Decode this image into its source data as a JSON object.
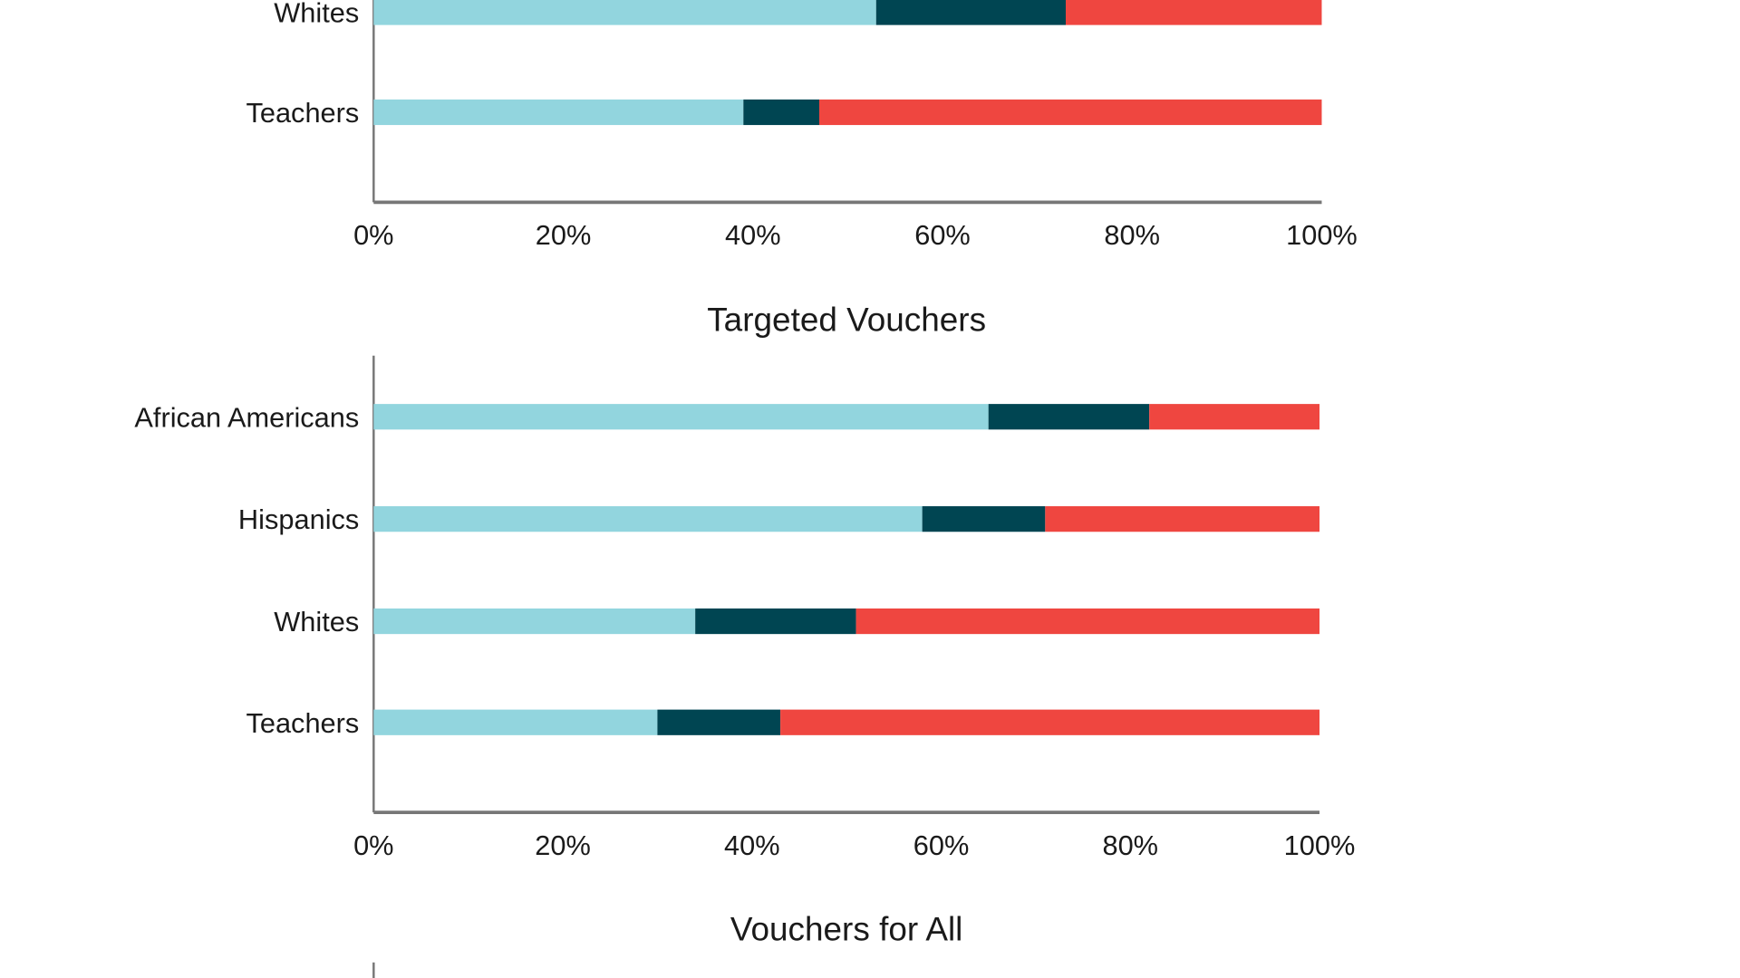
{
  "chart_data": [
    {
      "type": "bar",
      "orientation": "horizontal",
      "stacked": true,
      "title": "",
      "categories": [
        "Whites",
        "Teachers"
      ],
      "series": [
        {
          "color": "#92d5de",
          "values": [
            53,
            39
          ]
        },
        {
          "color": "#004552",
          "values": [
            20,
            8
          ]
        },
        {
          "color": "#ef4640",
          "values": [
            27,
            53
          ]
        }
      ],
      "xlim": [
        0,
        100
      ],
      "xticks": [
        "0%",
        "20%",
        "40%",
        "60%",
        "80%",
        "100%"
      ],
      "grid": false
    },
    {
      "type": "bar",
      "orientation": "horizontal",
      "stacked": true,
      "title": "Targeted Vouchers",
      "categories": [
        "African Americans",
        "Hispanics",
        "Whites",
        "Teachers"
      ],
      "series": [
        {
          "color": "#92d5de",
          "values": [
            65,
            58,
            34,
            30
          ]
        },
        {
          "color": "#004552",
          "values": [
            17,
            13,
            17,
            13
          ]
        },
        {
          "color": "#ef4640",
          "values": [
            18,
            29,
            49,
            57
          ]
        }
      ],
      "xlim": [
        0,
        100
      ],
      "xticks": [
        "0%",
        "20%",
        "40%",
        "60%",
        "80%",
        "100%"
      ],
      "grid": false
    },
    {
      "type": "bar",
      "orientation": "horizontal",
      "stacked": true,
      "title": "Vouchers for All",
      "categories": [],
      "series": []
    }
  ]
}
